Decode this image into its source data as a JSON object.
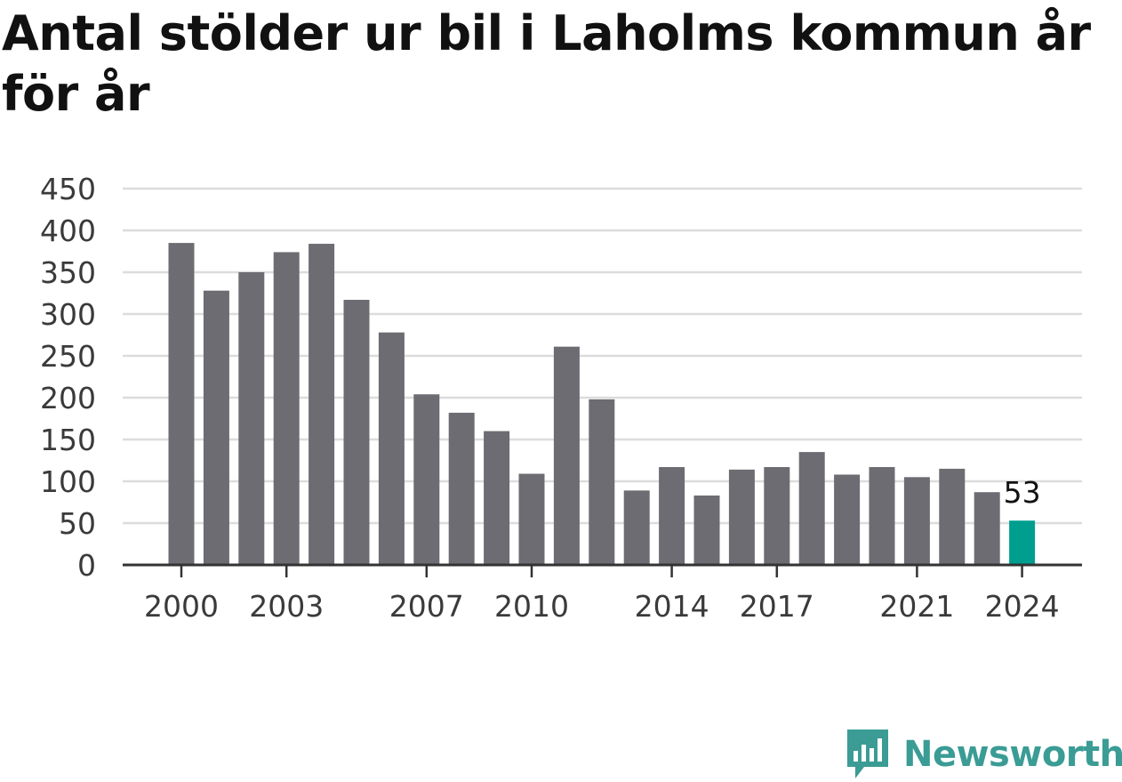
{
  "title": "Antal stölder ur bil i Laholms kommun år för år",
  "brand": {
    "name": "Newsworthy",
    "icon": "newsworthy-logo-icon"
  },
  "colors": {
    "bar": "#6d6c72",
    "highlight": "#009e8f",
    "grid": "#dcdcdc",
    "axis": "#333333",
    "brand": "#3a9c95"
  },
  "chart_data": {
    "type": "bar",
    "title": "Antal stölder ur bil i Laholms kommun år för år",
    "xlabel": "",
    "ylabel": "",
    "categories": [
      "2000",
      "2001",
      "2002",
      "2003",
      "2004",
      "2005",
      "2006",
      "2007",
      "2008",
      "2009",
      "2010",
      "2011",
      "2012",
      "2013",
      "2014",
      "2015",
      "2016",
      "2017",
      "2018",
      "2019",
      "2020",
      "2021",
      "2022",
      "2023",
      "2024"
    ],
    "values": [
      385,
      328,
      350,
      374,
      384,
      317,
      278,
      204,
      182,
      160,
      109,
      261,
      198,
      89,
      117,
      83,
      114,
      117,
      135,
      108,
      117,
      105,
      115,
      87,
      53
    ],
    "ylim": [
      0,
      450
    ],
    "yticks": [
      0,
      50,
      100,
      150,
      200,
      250,
      300,
      350,
      400,
      450
    ],
    "xtick_labels": [
      "2000",
      "2003",
      "2007",
      "2010",
      "2014",
      "2017",
      "2021",
      "2024"
    ],
    "highlight": {
      "category": "2024",
      "label": "53"
    },
    "grid": true,
    "legend": "none"
  }
}
